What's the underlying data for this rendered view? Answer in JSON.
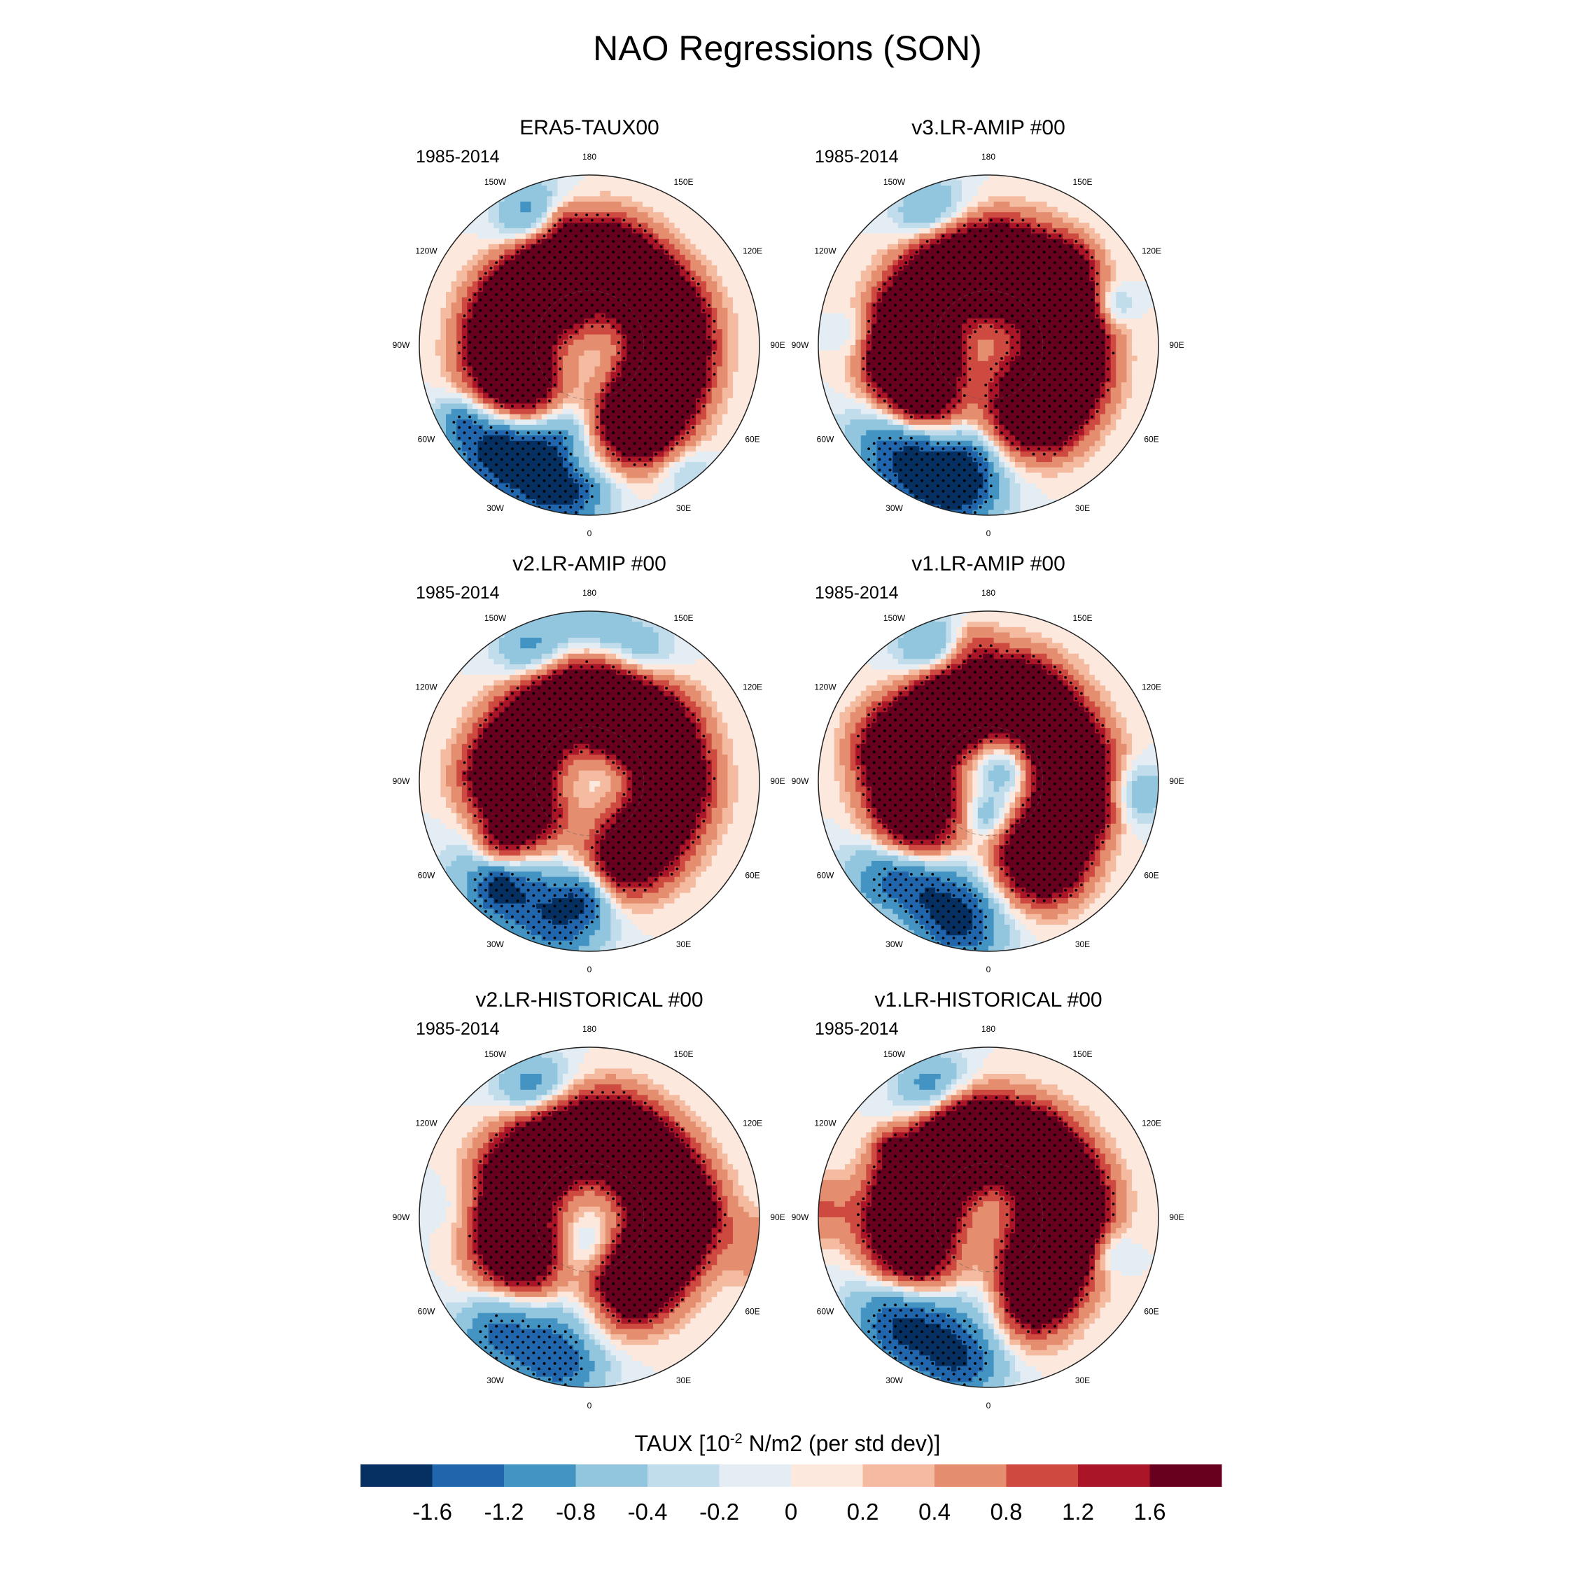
{
  "figure": {
    "title": "NAO Regressions (SON)"
  },
  "colorbar": {
    "title_prefix": "TAUX [10",
    "title_exponent": "-2",
    "title_suffix": " N/m2 (per std dev)]",
    "colors": [
      "#053061",
      "#2166ac",
      "#4393c3",
      "#92c5de",
      "#c1ddec",
      "#e3edf3",
      "#fce8dd",
      "#f4bba0",
      "#e48e6f",
      "#ce4a41",
      "#aa1528",
      "#67001f"
    ],
    "tick_labels": [
      "-1.6",
      "-1.2",
      "-0.8",
      "-0.4",
      "-0.2",
      "0",
      "0.2",
      "0.4",
      "0.8",
      "1.2",
      "1.6"
    ]
  },
  "longitude_labels": [
    "180",
    "150E",
    "120E",
    "90E",
    "60E",
    "30E",
    "0",
    "30W",
    "60W",
    "90W",
    "120W",
    "150W"
  ],
  "chart_data": {
    "type": "heatmap",
    "title": "NAO Regressions (SON)",
    "variable": "TAUX",
    "units": "10^-2 N/m2 (per std dev)",
    "levels": [
      -1.6,
      -1.2,
      -0.8,
      -0.4,
      -0.2,
      0,
      0.2,
      0.4,
      0.8,
      1.2,
      1.6
    ],
    "projection": "north polar stereographic",
    "panels": [
      {
        "title": "ERA5-TAUX00",
        "period": "1985-2014",
        "ring": 1.7,
        "lowlat": -1.7,
        "seed": 3
      },
      {
        "title": "v3.LR-AMIP  #00",
        "period": "1985-2014",
        "ring": 1.5,
        "lowlat": -1.4,
        "seed": 7
      },
      {
        "title": "v2.LR-AMIP  #00",
        "period": "1985-2014",
        "ring": 1.5,
        "lowlat": -1.2,
        "seed": 11
      },
      {
        "title": "v1.LR-AMIP  #00",
        "period": "1985-2014",
        "ring": 1.7,
        "lowlat": -1.5,
        "seed": 13
      },
      {
        "title": "v2.LR-HISTORICAL  #00",
        "period": "1985-2014",
        "ring": 1.6,
        "lowlat": -1.3,
        "seed": 17
      },
      {
        "title": "v1.LR-HISTORICAL  #00",
        "period": "1985-2014",
        "ring": 1.7,
        "lowlat": -1.4,
        "seed": 19
      }
    ]
  }
}
